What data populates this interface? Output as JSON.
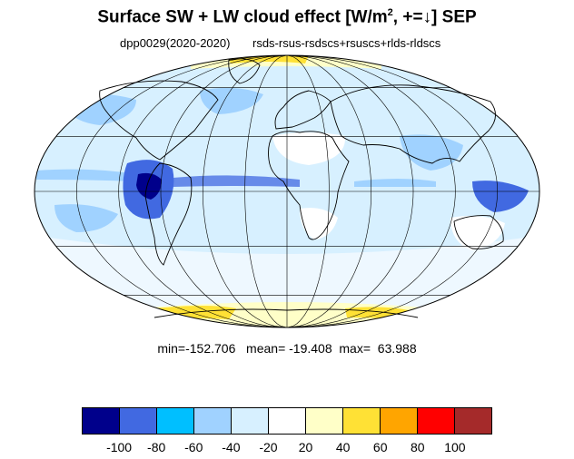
{
  "title": {
    "main": "Surface SW + LW cloud effect [W/m",
    "sup": "2",
    "rest": ", +=↓]  SEP"
  },
  "subtitle": {
    "left": "dpp0029(2020-2020)",
    "right": "rsds-rsus-rsdscs+rsuscs+rlds-rldscs"
  },
  "stats": {
    "text": "min=-152.706   mean= -19.408  max=  63.988"
  },
  "colorbar": {
    "colors": [
      "#00008b",
      "#4169e1",
      "#00bfff",
      "#a0d2ff",
      "#d7f0ff",
      "#ffffff",
      "#ffffc8",
      "#ffe135",
      "#ffa500",
      "#ff0000",
      "#a52a2a"
    ],
    "labels": [
      "-100",
      "-80",
      "-60",
      "-40",
      "-20",
      "20",
      "40",
      "60",
      "80",
      "100"
    ]
  },
  "map": {
    "projection": "mollweide",
    "grid": true,
    "colors": {
      "background": "#d7f0ff",
      "coast": "#000000",
      "grid": "#000000"
    }
  }
}
